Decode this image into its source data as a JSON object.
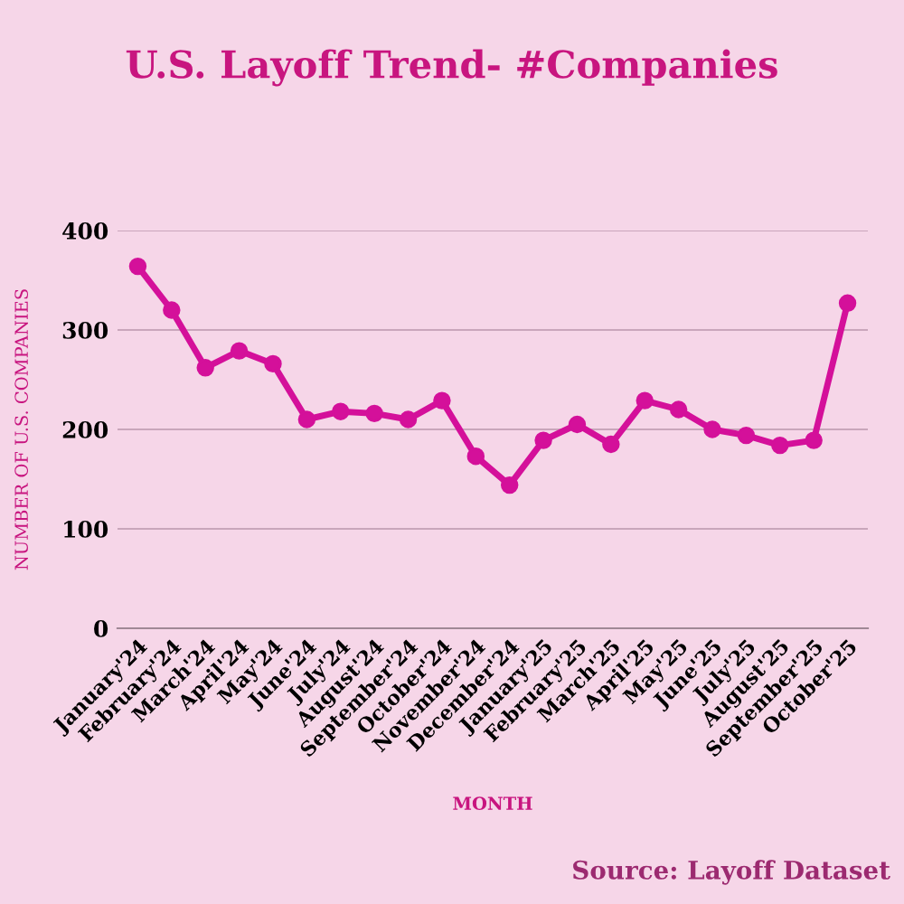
{
  "chart_data": {
    "type": "line",
    "title": "U.S. Layoff Trend- #Companies",
    "xlabel": "MONTH",
    "ylabel": "NUMBER OF U.S. COMPANIES",
    "categories": [
      "January'24",
      "February'24",
      "March'24",
      "April'24",
      "May'24",
      "June'24",
      "July'24",
      "August'24",
      "September'24",
      "October'24",
      "November'24",
      "December'24",
      "January'25",
      "February'25",
      "March'25",
      "April'25",
      "May'25",
      "June'25",
      "July'25",
      "August'25",
      "September'25",
      "October'25"
    ],
    "series": [
      {
        "color": "#d4109a",
        "values": [
          364,
          320,
          262,
          279,
          266,
          210,
          218,
          216,
          210,
          229,
          173,
          144,
          189,
          205,
          185,
          229,
          220,
          200,
          194,
          184,
          189,
          327
        ]
      }
    ],
    "ylim": [
      0,
      400
    ],
    "yticks": [
      0,
      100,
      200,
      300,
      400
    ],
    "grid": "y",
    "marker": "circle",
    "line_style": "solid",
    "annotations": [
      "Source: Layoff Dataset"
    ]
  }
}
